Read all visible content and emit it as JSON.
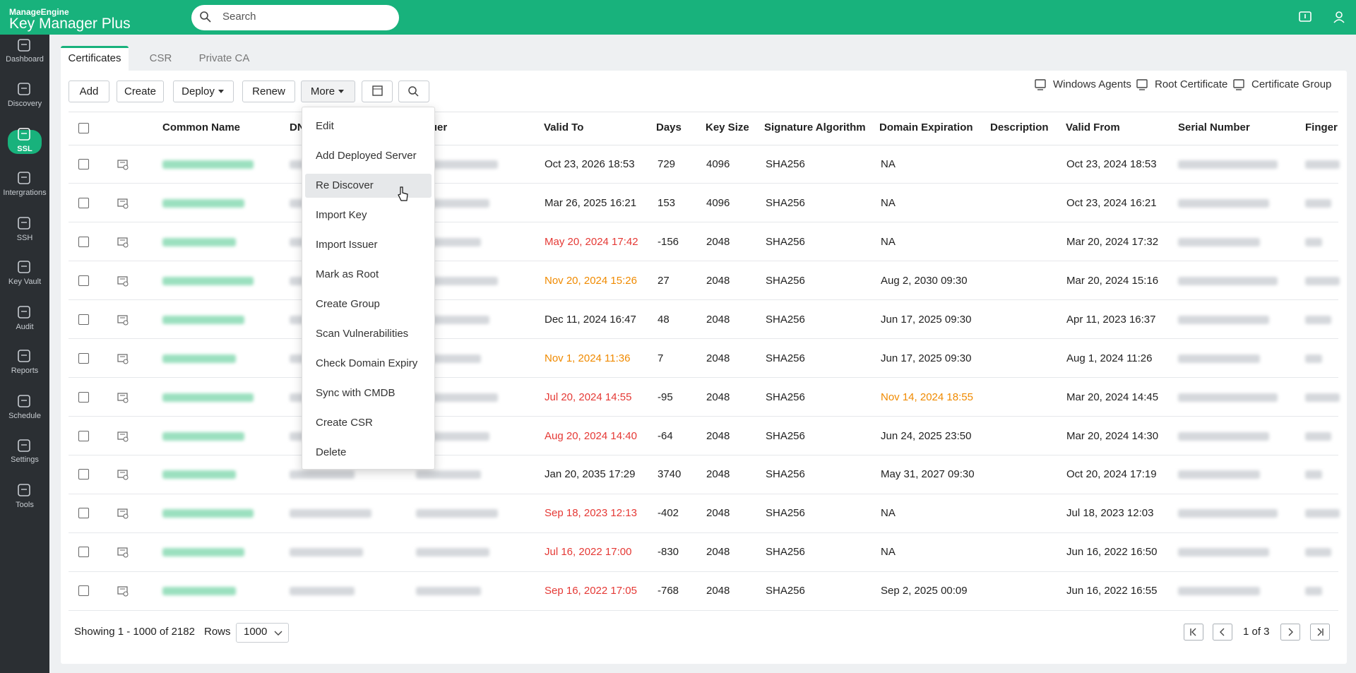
{
  "header": {
    "brand": "ManageEngine",
    "product": "Key Manager Plus",
    "search_placeholder": "Search"
  },
  "sidebar": {
    "items": [
      "Dashboard",
      "Discovery",
      "SSL",
      "Intergrations",
      "SSH",
      "Key Vault",
      "Audit",
      "Reports",
      "Schedule",
      "Settings",
      "Tools"
    ],
    "active": 2
  },
  "tabs": {
    "items": [
      "Certificates",
      "CSR",
      "Private CA"
    ],
    "active": 0
  },
  "toolbar": [
    {
      "label": "Add",
      "dropdown": false
    },
    {
      "label": "Create",
      "dropdown": false
    },
    {
      "label": "Deploy",
      "dropdown": true
    },
    {
      "label": "Renew",
      "dropdown": false
    },
    {
      "label": "More",
      "dropdown": true
    }
  ],
  "links": [
    "Windows Agents",
    "Root Certificate",
    "Certificate Group"
  ],
  "menu": {
    "items": [
      "Edit",
      "Add Deployed Server",
      "Re Discover",
      "Import Key",
      "Import Issuer",
      "Mark as Root",
      "Create Group",
      "Scan Vulnerabilities",
      "Check Domain Expiry",
      "Sync with CMDB",
      "Create CSR",
      "Delete"
    ],
    "hover": 2
  },
  "table": {
    "columns": [
      "Common Name",
      "DNS Name",
      "Issuer",
      "Valid To",
      "Days",
      "Key Size",
      "Signature Algorithm",
      "Domain Expiration",
      "Description",
      "Valid From",
      "Serial Number",
      "Finger"
    ],
    "rows": [
      {
        "valid_to": "Oct 23, 2026 18:53",
        "days": "729",
        "key_size": "4096",
        "signature_algorithm": "SHA256",
        "domain_expiration": "NA",
        "valid_from": "Oct 23, 2024 18:53"
      },
      {
        "valid_to": "Mar 26, 2025 16:21",
        "days": "153",
        "key_size": "4096",
        "signature_algorithm": "SHA256",
        "domain_expiration": "NA",
        "valid_from": "Oct 23, 2024 16:21"
      },
      {
        "valid_to": "May 20, 2024 17:42",
        "valid_to_color": "#e53935",
        "days": "-156",
        "key_size": "2048",
        "signature_algorithm": "SHA256",
        "domain_expiration": "NA",
        "valid_from": "Mar 20, 2024 17:32"
      },
      {
        "valid_to": "Nov 20, 2024 15:26",
        "valid_to_color": "#f08a00",
        "days": "27",
        "key_size": "2048",
        "signature_algorithm": "SHA256",
        "domain_expiration": "Aug 2, 2030 09:30",
        "valid_from": "Mar 20, 2024 15:16"
      },
      {
        "valid_to": "Dec 11, 2024 16:47",
        "days": "48",
        "key_size": "2048",
        "signature_algorithm": "SHA256",
        "domain_expiration": "Jun 17, 2025 09:30",
        "valid_from": "Apr 11, 2023 16:37"
      },
      {
        "valid_to": "Nov 1, 2024 11:36",
        "valid_to_color": "#f08a00",
        "days": "7",
        "key_size": "2048",
        "signature_algorithm": "SHA256",
        "domain_expiration": "Jun 17, 2025 09:30",
        "valid_from": "Aug 1, 2024 11:26"
      },
      {
        "valid_to": "Jul 20, 2024 14:55",
        "valid_to_color": "#e53935",
        "days": "-95",
        "key_size": "2048",
        "signature_algorithm": "SHA256",
        "domain_expiration": "Nov 14, 2024 18:55",
        "domain_expiration_color": "#f08a00",
        "valid_from": "Mar 20, 2024 14:45"
      },
      {
        "valid_to": "Aug 20, 2024 14:40",
        "valid_to_color": "#e53935",
        "days": "-64",
        "key_size": "2048",
        "signature_algorithm": "SHA256",
        "domain_expiration": "Jun 24, 2025 23:50",
        "valid_from": "Mar 20, 2024 14:30"
      },
      {
        "valid_to": "Jan 20, 2035 17:29",
        "days": "3740",
        "key_size": "2048",
        "signature_algorithm": "SHA256",
        "domain_expiration": "May 31, 2027 09:30",
        "valid_from": "Oct 20, 2024 17:19"
      },
      {
        "valid_to": "Sep 18, 2023 12:13",
        "valid_to_color": "#e53935",
        "days": "-402",
        "key_size": "2048",
        "signature_algorithm": "SHA256",
        "domain_expiration": "NA",
        "valid_from": "Jul 18, 2023 12:03"
      },
      {
        "valid_to": "Jul 16, 2022 17:00",
        "valid_to_color": "#e53935",
        "days": "-830",
        "key_size": "2048",
        "signature_algorithm": "SHA256",
        "domain_expiration": "NA",
        "valid_from": "Jun 16, 2022 16:50"
      },
      {
        "valid_to": "Sep 16, 2022 17:05",
        "valid_to_color": "#e53935",
        "days": "-768",
        "key_size": "2048",
        "signature_algorithm": "SHA256",
        "domain_expiration": "Sep 2, 2025 00:09",
        "valid_from": "Jun 16, 2022 16:55"
      }
    ]
  },
  "footer": {
    "showing": "Showing 1 - 1000 of 2182",
    "rows_label": "Rows",
    "rows_value": "1000",
    "page": "1 of 3"
  }
}
